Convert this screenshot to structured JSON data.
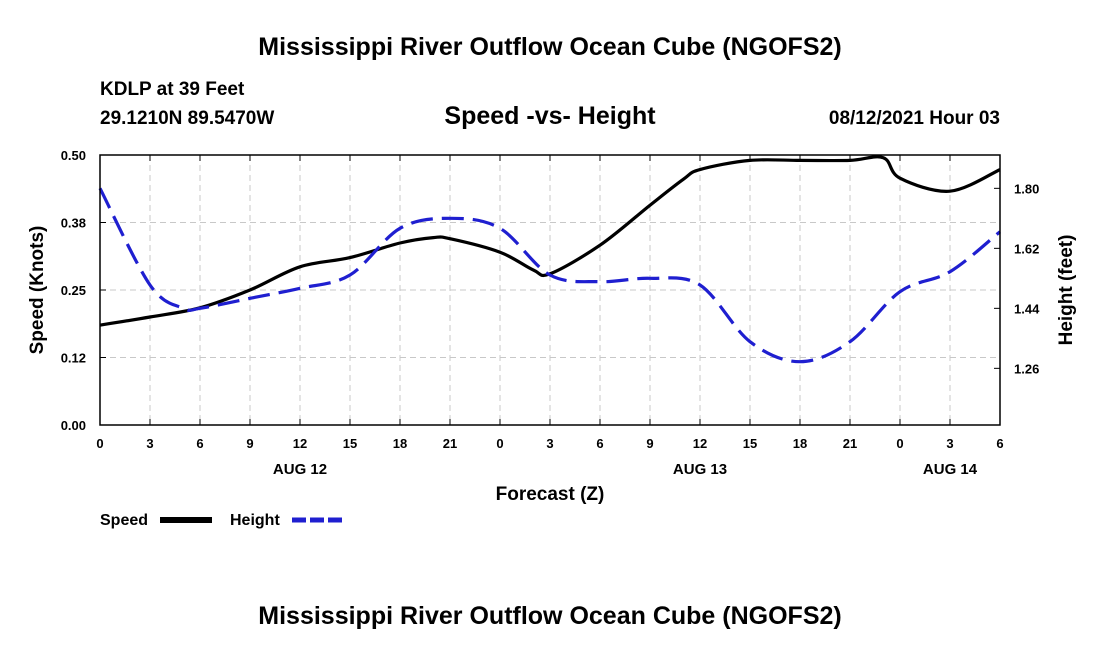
{
  "header": {
    "title": "Mississippi River Outflow Ocean Cube (NGOFS2)",
    "station": "KDLP at 39 Feet",
    "coords": "29.1210N  89.5470W",
    "chart_title": "Speed -vs- Height",
    "datetime": "08/12/2021 Hour 03"
  },
  "footer": {
    "title": "Mississippi River Outflow Ocean Cube (NGOFS2)"
  },
  "legend": {
    "speed_label": "Speed",
    "height_label": "Height"
  },
  "colors": {
    "speed": "#000000",
    "height": "#1f1fd0",
    "grid": "#c8c8c8"
  },
  "chart_data": {
    "type": "line",
    "title": "Speed -vs- Height",
    "xlabel": "Forecast (Z)",
    "ylabel_left": "Speed (Knots)",
    "ylabel_right": "Height (feet)",
    "x_range": [
      0,
      54
    ],
    "x_tick_values": [
      0,
      3,
      6,
      9,
      12,
      15,
      18,
      21,
      24,
      27,
      30,
      33,
      36,
      39,
      42,
      45,
      48,
      51,
      54
    ],
    "x_tick_labels": [
      "0",
      "3",
      "6",
      "9",
      "12",
      "15",
      "18",
      "21",
      "0",
      "3",
      "6",
      "9",
      "12",
      "15",
      "18",
      "21",
      "0",
      "3",
      "6"
    ],
    "date_labels": [
      {
        "label": "AUG 12",
        "at_hour": 12
      },
      {
        "label": "AUG 13",
        "at_hour": 36
      },
      {
        "label": "AUG 14",
        "at_hour": 51
      }
    ],
    "ylim_left": [
      0,
      0.5
    ],
    "yticks_left": [
      {
        "value": 0.0,
        "label": "0.00"
      },
      {
        "value": 0.125,
        "label": "0.12"
      },
      {
        "value": 0.25,
        "label": "0.25"
      },
      {
        "value": 0.375,
        "label": "0.38"
      },
      {
        "value": 0.5,
        "label": "0.50"
      }
    ],
    "ylim_right": [
      1.09,
      1.9
    ],
    "yticks_right": [
      {
        "value": 1.26,
        "label": "1.26"
      },
      {
        "value": 1.44,
        "label": "1.44"
      },
      {
        "value": 1.62,
        "label": "1.62"
      },
      {
        "value": 1.8,
        "label": "1.80"
      }
    ],
    "grid": true,
    "series": [
      {
        "name": "Speed",
        "axis": "left",
        "style": "solid",
        "x": [
          0,
          3,
          6,
          9,
          12,
          15,
          18,
          20,
          21,
          24,
          26,
          27,
          30,
          33,
          35,
          36,
          39,
          42,
          45,
          47,
          48,
          51,
          54
        ],
        "y": [
          0.185,
          0.2,
          0.217,
          0.25,
          0.293,
          0.31,
          0.337,
          0.347,
          0.345,
          0.32,
          0.287,
          0.28,
          0.333,
          0.407,
          0.455,
          0.473,
          0.49,
          0.49,
          0.49,
          0.495,
          0.457,
          0.433,
          0.473
        ]
      },
      {
        "name": "Height",
        "axis": "right",
        "style": "dashed",
        "x": [
          0,
          3,
          5,
          6,
          9,
          12,
          15,
          18,
          21,
          24,
          27,
          30,
          33,
          36,
          39,
          42,
          45,
          48,
          51,
          54
        ],
        "y": [
          1.8,
          1.51,
          1.44,
          1.44,
          1.47,
          1.5,
          1.54,
          1.68,
          1.71,
          1.68,
          1.54,
          1.52,
          1.53,
          1.51,
          1.34,
          1.28,
          1.34,
          1.49,
          1.55,
          1.67
        ]
      }
    ]
  }
}
